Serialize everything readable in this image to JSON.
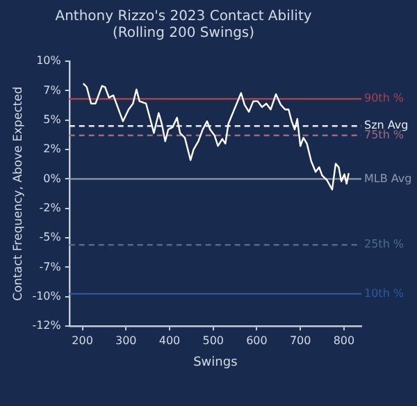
{
  "chart_data": {
    "type": "line",
    "title": "Anthony Rizzo's 2023 Contact Ability\n(Rolling 200 Swings)",
    "xlabel": "Swings",
    "ylabel": "Contact Frequency, Above Expected",
    "xlim": [
      170,
      840
    ],
    "xticks": [
      200,
      300,
      400,
      500,
      600,
      700,
      800
    ],
    "ylim": [
      -12.5,
      10
    ],
    "yticks": [
      {
        "value": -12.5,
        "label": "-12%"
      },
      {
        "value": -10,
        "label": "-10%"
      },
      {
        "value": -7.5,
        "label": "-7%"
      },
      {
        "value": -5,
        "label": "-5%"
      },
      {
        "value": -2.5,
        "label": "-2%"
      },
      {
        "value": 0,
        "label": "0%"
      },
      {
        "value": 2.5,
        "label": "2%"
      },
      {
        "value": 5,
        "label": "5%"
      },
      {
        "value": 7.5,
        "label": "7%"
      },
      {
        "value": 10,
        "label": "10%"
      }
    ],
    "grid": false,
    "legend": false,
    "marker": "none",
    "line_style": "solid",
    "series": [
      {
        "color": "#ffffff",
        "x": [
          202,
          210,
          220,
          230,
          245,
          252,
          261,
          271,
          281,
          293,
          306,
          316,
          324,
          331,
          346,
          357,
          364,
          375,
          382,
          390,
          397,
          407,
          417,
          424,
          435,
          448,
          455,
          466,
          476,
          486,
          493,
          503,
          511,
          521,
          528,
          535,
          545,
          554,
          564,
          572,
          582,
          592,
          602,
          612,
          622,
          632,
          644,
          655,
          665,
          673,
          680,
          687,
          693,
          700,
          707,
          715,
          725,
          735,
          743,
          750,
          761,
          773,
          781,
          788,
          794,
          801,
          806,
          811
        ],
        "values": [
          8.1,
          7.8,
          6.4,
          6.4,
          7.9,
          7.8,
          6.9,
          7.1,
          6.1,
          4.9,
          5.9,
          6.4,
          7.6,
          6.6,
          6.4,
          4.9,
          3.9,
          5.6,
          4.7,
          3.2,
          4.2,
          4.4,
          5.2,
          3.9,
          3.5,
          1.6,
          2.5,
          3.2,
          4.2,
          4.9,
          4.2,
          3.7,
          2.8,
          3.4,
          3.0,
          4.7,
          5.6,
          6.4,
          7.3,
          6.3,
          5.7,
          6.6,
          6.6,
          6.1,
          6.4,
          5.9,
          7.2,
          6.3,
          5.9,
          5.9,
          4.9,
          4.2,
          5.1,
          2.8,
          3.5,
          3.0,
          1.5,
          0.6,
          1.0,
          0.3,
          -0.1,
          -0.9,
          1.3,
          1.0,
          -0.2,
          0.4,
          -0.4,
          0.5
        ]
      }
    ],
    "ref_lines": [
      {
        "axis": "y",
        "value": 6.8,
        "label": "90th %",
        "color": "#a8424a",
        "line_style": "solid"
      },
      {
        "axis": "y",
        "value": 4.5,
        "label": "Szn Avg",
        "color": "#e8ecf2",
        "line_style": "dashed"
      },
      {
        "axis": "y",
        "value": 3.7,
        "label": "75th %",
        "color": "#9c6b80",
        "line_style": "dashed"
      },
      {
        "axis": "y",
        "value": 0,
        "label": "MLB Avg",
        "color": "#8f99aa",
        "line_style": "solid"
      },
      {
        "axis": "y",
        "value": -5.6,
        "label": "25th %",
        "color": "#4f6b92",
        "line_style": "dashed"
      },
      {
        "axis": "y",
        "value": -9.75,
        "label": "10th %",
        "color": "#2c5a9c",
        "line_style": "solid"
      }
    ]
  }
}
